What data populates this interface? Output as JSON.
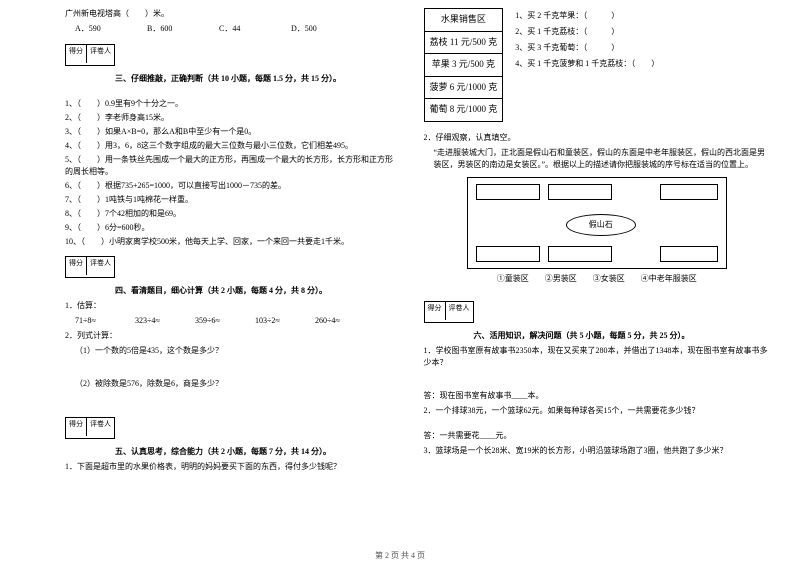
{
  "col1": {
    "tv": {
      "q": "广州新电视塔高（　　）米。",
      "a": "A．590",
      "b": "B．600",
      "c": "C．44",
      "d": "D．500"
    },
    "scorer": {
      "c1": "得分",
      "c2": "评卷人"
    },
    "sec3": {
      "title": "三、仔细推敲，正确判断（共 10 小题，每题 1.5 分，共 15 分）。",
      "items": [
        "1、（　　）0.9里有9个十分之一。",
        "2、（　　）李老师身高15米。",
        "3、（　　）如果A×B=0，那么A和B中至少有一个是0。",
        "4、（　　）用3，6，8这三个数字组成的最大三位数与最小三位数，它们相差495。",
        "5、（　　）用一条铁丝先围成一个最大的正方形，再围成一个最大的长方形，长方形和正方形的周长相等。",
        "6、（　　）根据735+265=1000，可以直接写出1000－735的差。",
        "7、（　　）1吨铁与1吨棉花一样重。",
        "8、（　　）7个42相加的和是69。",
        "9、（　　）6分=600秒。",
        "10、（　　）小明家离学校500米，他每天上学、回家，一个来回一共要走1千米。"
      ]
    },
    "sec4": {
      "title": "四、看清题目，细心计算（共 2 小题，每题 4 分，共 8 分）。",
      "est": "1．估算：",
      "row": [
        "71÷8≈",
        "323÷4≈",
        "359÷6≈",
        "103÷2≈",
        "260÷4≈"
      ],
      "col": "2．列式计算：",
      "q1": "（1）一个数的5倍是435，这个数是多少？",
      "q2": "（2）被除数是576，除数是6，商是多少？"
    },
    "sec5": {
      "title": "五、认真思考，综合能力（共 2 小题，每题 7 分，共 14 分）。",
      "q1": "1．下面是超市里的水果价格表，明明的妈妈要买下面的东西，得付多少钱呢？"
    }
  },
  "col2": {
    "fruit": {
      "header": "水果销售区",
      "rows": [
        "荔枝 11 元/500 克",
        "苹果 3 元/500 克",
        "菠萝 6 元/1000 克",
        "葡萄 8 元/1000 克"
      ],
      "buy": [
        "1、买 2 千克苹果：（　　　）",
        "2、买 1 千克荔枝：（　　　）",
        "3、买 3 千克葡萄：（　　　）",
        "4、买 1 千克菠萝和 1 千克荔枝：（　　）"
      ]
    },
    "q2": {
      "intro": "2．仔细观察，认真填空。",
      "text": "“走进服装城大门，正北面是假山石和童装区，假山的东面是中老年服装区，假山的西北面是男装区，男装区的南边是女装区。”。根据以上的描述请你把服装城的序号标在适当的位置上。",
      "rock": "假山石",
      "legend": "①童装区　　②男装区　　③女装区　　④中老年服装区"
    },
    "scorer": {
      "c1": "得分",
      "c2": "评卷人"
    },
    "sec6": {
      "title": "六、活用知识，解决问题（共 5 小题，每题 5 分，共 25 分）。",
      "q1": "1．学校图书室原有故事书2350本，现在又买来了280本，并借出了1348本，现在图书室有故事书多少本？",
      "a1": "答：现在图书室有故事书____本。",
      "q2": "2．一个排球38元，一个篮球62元。如果每种球各买15个，一共需要花多少钱？",
      "a2": "答：一共需要花____元。",
      "q3": "3．篮球场是一个长28米、宽19米的长方形，小明沿篮球场跑了3圈，他共跑了多少米？"
    }
  },
  "footer": "第 2 页  共 4 页"
}
